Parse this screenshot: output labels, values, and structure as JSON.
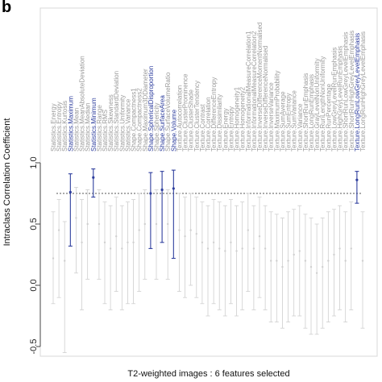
{
  "panel_label": "b",
  "chart_data": {
    "type": "scatter",
    "title": "",
    "xlabel": "T2-weighted images : 6 features selected",
    "ylabel": "Intraclass Correlation Coefficient",
    "ylim": [
      -0.5,
      1.0
    ],
    "yticks": [
      1.0,
      0.5,
      0.0,
      -0.5
    ],
    "ytick_labels": [
      "1.0",
      "0.5",
      "0.0",
      "-0.5"
    ],
    "threshold": 0.75,
    "grid": false,
    "colors": {
      "selected": "#2f3f9e",
      "unselected": "#cfcfcf",
      "unselected_label": "#9a9a9a",
      "threshold": "#555555"
    },
    "features": [
      {
        "label": "Statistics.Energy",
        "icc": 0.22,
        "low": -0.15,
        "high": 0.6,
        "selected": false
      },
      {
        "label": "Statistics.Entropy",
        "icc": 0.45,
        "low": -0.1,
        "high": 0.7,
        "selected": false
      },
      {
        "label": "Statistics.Kurtosis",
        "icc": 0.2,
        "low": -0.55,
        "high": 0.52,
        "selected": false
      },
      {
        "label": "Statistics.Maximum",
        "icc": 0.76,
        "low": 0.32,
        "high": 0.91,
        "selected": true
      },
      {
        "label": "Statistics.Mean",
        "icc": 0.55,
        "low": 0.1,
        "high": 0.8,
        "selected": false
      },
      {
        "label": "Statistics.MeanAbsoluteDeviation",
        "icc": 0.35,
        "low": -0.2,
        "high": 0.7,
        "selected": false
      },
      {
        "label": "Statistics.Median",
        "icc": 0.5,
        "low": 0.05,
        "high": 0.78,
        "selected": false
      },
      {
        "label": "Statistics.Minimum",
        "icc": 0.88,
        "low": 0.72,
        "high": 0.95,
        "selected": true
      },
      {
        "label": "Statistics.Range",
        "icc": 0.5,
        "low": 0.05,
        "high": 0.78,
        "selected": false
      },
      {
        "label": "Statistics.RMS",
        "icc": 0.35,
        "low": -0.15,
        "high": 0.68,
        "selected": false
      },
      {
        "label": "Statistics.Skewness",
        "icc": 0.3,
        "low": -0.2,
        "high": 0.65,
        "selected": false
      },
      {
        "label": "Statistics.StandardDeviation",
        "icc": 0.4,
        "low": -0.05,
        "high": 0.72,
        "selected": false
      },
      {
        "label": "Statistics.Uniformity",
        "icc": 0.3,
        "low": -0.2,
        "high": 0.65,
        "selected": false
      },
      {
        "label": "Statistics.Variance",
        "icc": 0.35,
        "low": -0.15,
        "high": 0.68,
        "selected": false
      },
      {
        "label": "Shape.Compactness1",
        "icc": 0.35,
        "low": -0.15,
        "high": 0.7,
        "selected": false
      },
      {
        "label": "Shape.Compactness2",
        "icc": 0.45,
        "low": -0.05,
        "high": 0.75,
        "selected": false
      },
      {
        "label": "Shape.Maximum3DDiameter",
        "icc": 0.5,
        "low": 0.05,
        "high": 0.78,
        "selected": false
      },
      {
        "label": "Shape.SphericalDisproportion",
        "icc": 0.75,
        "low": 0.3,
        "high": 0.92,
        "selected": true
      },
      {
        "label": "Shape.Sphericity",
        "icc": 0.5,
        "low": 0.05,
        "high": 0.78,
        "selected": false
      },
      {
        "label": "Shape.SurfaceArea",
        "icc": 0.78,
        "low": 0.35,
        "high": 0.93,
        "selected": true
      },
      {
        "label": "Shape.SurfaceVolumeRatio",
        "icc": 0.5,
        "low": 0.05,
        "high": 0.78,
        "selected": false
      },
      {
        "label": "Shape.Volume",
        "icc": 0.79,
        "low": 0.22,
        "high": 0.94,
        "selected": true
      },
      {
        "label": "Texture.Autocorrelation",
        "icc": 0.45,
        "low": -0.05,
        "high": 0.75,
        "selected": false
      },
      {
        "label": "Texture.ClusterProminence",
        "icc": 0.4,
        "low": -0.1,
        "high": 0.72,
        "selected": false
      },
      {
        "label": "Texture.ClusterShade",
        "icc": 0.45,
        "low": 0.0,
        "high": 0.75,
        "selected": false
      },
      {
        "label": "Texture.ClusterTendency",
        "icc": 0.42,
        "low": -0.1,
        "high": 0.72,
        "selected": false
      },
      {
        "label": "Texture.Contrast",
        "icc": 0.35,
        "low": -0.15,
        "high": 0.68,
        "selected": false
      },
      {
        "label": "Texture.Correlation",
        "icc": 0.3,
        "low": -0.25,
        "high": 0.65,
        "selected": false
      },
      {
        "label": "Texture.DifferenceEntropy",
        "icc": 0.35,
        "low": -0.15,
        "high": 0.7,
        "selected": false
      },
      {
        "label": "Texture.Dissimilarity",
        "icc": 0.3,
        "low": -0.2,
        "high": 0.68,
        "selected": false
      },
      {
        "label": "Texture.Energy",
        "icc": 0.28,
        "low": -0.25,
        "high": 0.65,
        "selected": false
      },
      {
        "label": "Texture.Entropy",
        "icc": 0.35,
        "low": -0.15,
        "high": 0.7,
        "selected": false
      },
      {
        "label": "Texture.Homogeneity1",
        "icc": 0.28,
        "low": -0.25,
        "high": 0.65,
        "selected": false
      },
      {
        "label": "Texture.Homogeneity2",
        "icc": 0.3,
        "low": -0.2,
        "high": 0.68,
        "selected": false
      },
      {
        "label": "Texture.InformationalMeasureCorrelation1",
        "icc": 0.45,
        "low": -0.05,
        "high": 0.75,
        "selected": false
      },
      {
        "label": "Texture.InformationalMeasureCorrelation2",
        "icc": 0.3,
        "low": -0.2,
        "high": 0.65,
        "selected": false
      },
      {
        "label": "Texture.InverseDifferenceMomentNormalised",
        "icc": 0.4,
        "low": -0.1,
        "high": 0.72,
        "selected": false
      },
      {
        "label": "Texture.InverseDifferenceNormalised",
        "icc": 0.3,
        "low": -0.2,
        "high": 0.65,
        "selected": false
      },
      {
        "label": "Texture.InverseVariance",
        "icc": 0.2,
        "low": -0.3,
        "high": 0.6,
        "selected": false
      },
      {
        "label": "Texture.MaximumProbability",
        "icc": 0.2,
        "low": -0.3,
        "high": 0.58,
        "selected": false
      },
      {
        "label": "Texture.SumAverage",
        "icc": 0.15,
        "low": -0.35,
        "high": 0.55,
        "selected": false
      },
      {
        "label": "Texture.SumEntropy",
        "icc": 0.2,
        "low": -0.3,
        "high": 0.6,
        "selected": false
      },
      {
        "label": "Texture.SumVariance",
        "icc": 0.25,
        "low": -0.25,
        "high": 0.62,
        "selected": false
      },
      {
        "label": "Texture.Variance",
        "icc": 0.28,
        "low": -0.25,
        "high": 0.65,
        "selected": false
      },
      {
        "label": "Texture.ShortRunEmphasis",
        "icc": 0.2,
        "low": -0.35,
        "high": 0.58,
        "selected": false
      },
      {
        "label": "Texture.LongRunEmphasis",
        "icc": 0.15,
        "low": -0.4,
        "high": 0.55,
        "selected": false
      },
      {
        "label": "Texture.GrayLevelNonUniformity",
        "icc": 0.1,
        "low": -0.4,
        "high": 0.5,
        "selected": false
      },
      {
        "label": "Texture.RunLengthNonUniformity",
        "icc": 0.15,
        "low": -0.35,
        "high": 0.55,
        "selected": false
      },
      {
        "label": "Texture.RunPercentage",
        "icc": 0.2,
        "low": -0.3,
        "high": 0.6,
        "selected": false
      },
      {
        "label": "Texture.LowGreyLevelRunEmphasis",
        "icc": 0.25,
        "low": -0.25,
        "high": 0.62,
        "selected": false
      },
      {
        "label": "Texture.HighGreyLevelRunEmphasis",
        "icc": 0.3,
        "low": -0.2,
        "high": 0.65,
        "selected": false
      },
      {
        "label": "Texture.ShortRunLowGreyLevelEmphasis",
        "icc": 0.2,
        "low": -0.3,
        "high": 0.6,
        "selected": false
      },
      {
        "label": "Texture.ShortRunHighGreyLevelEmphasis",
        "icc": 0.3,
        "low": -0.2,
        "high": 0.68,
        "selected": false
      },
      {
        "label": "Texture.LongRunLowGreyLevelEmphasis",
        "icc": 0.86,
        "low": 0.67,
        "high": 0.93,
        "selected": true
      },
      {
        "label": "Texture.LongRunHighGreyLevelEmphasis",
        "icc": 0.2,
        "low": -0.35,
        "high": 0.6,
        "selected": false
      }
    ]
  }
}
